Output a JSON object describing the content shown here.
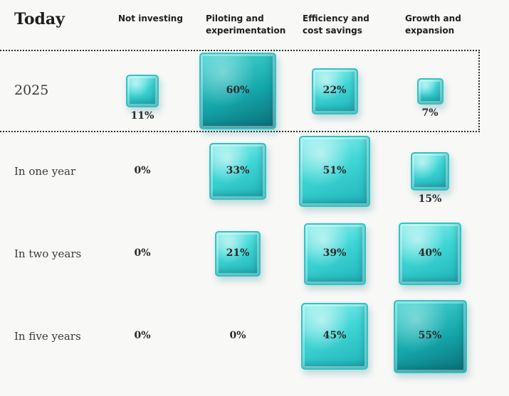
{
  "title": "Today",
  "chart_data": {
    "type": "table",
    "columns": [
      "Not investing",
      "Piloting and\nexperimentation",
      "Efficiency and\ncost savings",
      "Growth and\nexpansion"
    ],
    "rows": [
      {
        "label": "2025",
        "values": [
          11,
          60,
          22,
          7
        ],
        "highlighted": true
      },
      {
        "label": "In one year",
        "values": [
          0,
          33,
          51,
          15
        ]
      },
      {
        "label": "In two years",
        "values": [
          0,
          21,
          39,
          40
        ]
      },
      {
        "label": "In five years",
        "values": [
          0,
          0,
          45,
          55
        ]
      }
    ],
    "unit": "%",
    "colors": {
      "cube": "#3fd6d6",
      "cube_dark": "#14a7ab",
      "text": "#2a2a2a"
    }
  }
}
